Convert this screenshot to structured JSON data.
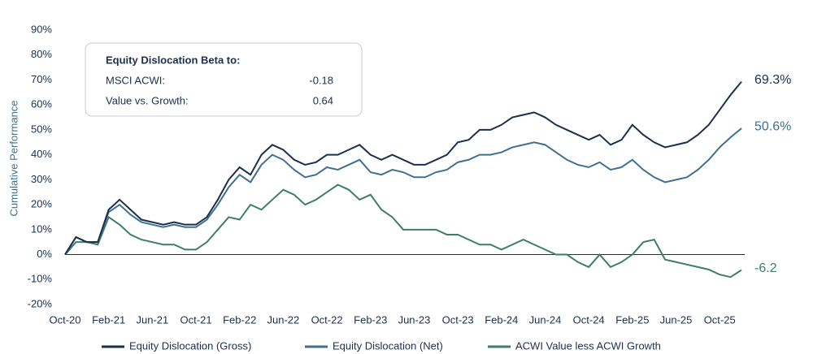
{
  "chart_data": {
    "type": "line",
    "y_label": "Cumulative Performance",
    "categories": [
      "Oct-20",
      null,
      null,
      null,
      "Feb-21",
      null,
      null,
      null,
      "Jun-21",
      null,
      null,
      null,
      "Oct-21",
      null,
      null,
      null,
      "Feb-22",
      null,
      null,
      null,
      "Jun-22",
      null,
      null,
      null,
      "Oct-22",
      null,
      null,
      null,
      "Feb-23",
      null,
      null,
      null,
      "Jun-23",
      null,
      null,
      null,
      "Oct-23",
      null,
      null,
      null,
      "Feb-24",
      null,
      null,
      null,
      "Jun-24",
      null,
      null,
      null,
      "Oct-24",
      null,
      null,
      null,
      "Feb-25",
      null,
      null,
      null,
      "Jun-25",
      null,
      null,
      null,
      "Oct-25",
      null,
      null
    ],
    "series": [
      {
        "name": "Equity Dislocation (Gross)",
        "color": "#1b2f4e",
        "end_label": "69.3%",
        "values": [
          0,
          7,
          5,
          5,
          18,
          22,
          18,
          14,
          13,
          12,
          13,
          12,
          12,
          15,
          22,
          30,
          35,
          32,
          40,
          44,
          42,
          38,
          36,
          37,
          40,
          40,
          42,
          44,
          40,
          38,
          40,
          38,
          36,
          36,
          38,
          40,
          45,
          46,
          50,
          50,
          52,
          55,
          56,
          57,
          55,
          52,
          50,
          48,
          46,
          48,
          44,
          46,
          52,
          48,
          45,
          43,
          44,
          45,
          48,
          52,
          58,
          64,
          69.3
        ]
      },
      {
        "name": "Equity Dislocation (Net)",
        "color": "#3f7090",
        "end_label": "50.6%",
        "values": [
          0,
          7,
          5,
          5,
          17,
          20,
          16,
          13,
          12,
          11,
          12,
          11,
          11,
          14,
          20,
          27,
          32,
          29,
          36,
          40,
          38,
          34,
          31,
          32,
          35,
          34,
          36,
          38,
          33,
          32,
          34,
          33,
          31,
          31,
          33,
          34,
          37,
          38,
          40,
          40,
          41,
          43,
          44,
          45,
          44,
          41,
          38,
          36,
          35,
          37,
          34,
          35,
          38,
          34,
          31,
          29,
          30,
          31,
          34,
          38,
          43,
          47,
          50.6
        ]
      },
      {
        "name": "ACWI Value less ACWI Growth",
        "color": "#3d7d6a",
        "end_label": "-6.2",
        "values": [
          0,
          5,
          5,
          4,
          15,
          12,
          8,
          6,
          5,
          4,
          4,
          2,
          2,
          5,
          10,
          15,
          14,
          20,
          18,
          22,
          26,
          24,
          20,
          22,
          25,
          28,
          26,
          22,
          24,
          18,
          15,
          10,
          10,
          10,
          10,
          8,
          8,
          6,
          4,
          4,
          2,
          4,
          6,
          4,
          2,
          0,
          0,
          -3,
          -5,
          0,
          -5,
          -3,
          0,
          5,
          6,
          -2,
          -3,
          -4,
          -5,
          -6,
          -8,
          -9,
          -6.2
        ]
      }
    ],
    "ylim": [
      -20,
      90
    ],
    "yticks": [
      {
        "value": -20,
        "label": "-20%"
      },
      {
        "value": -10,
        "label": "-10%"
      },
      {
        "value": 0,
        "label": "0%"
      },
      {
        "value": 10,
        "label": "10%"
      },
      {
        "value": 20,
        "label": "20%"
      },
      {
        "value": 30,
        "label": "30%"
      },
      {
        "value": 40,
        "label": "40%"
      },
      {
        "value": 50,
        "label": "50%"
      },
      {
        "value": 60,
        "label": "60%"
      },
      {
        "value": 70,
        "label": "70%"
      },
      {
        "value": 80,
        "label": "80%"
      },
      {
        "value": 90,
        "label": "90%"
      }
    ],
    "zero_line": true,
    "legend": "bottom",
    "inset": {
      "title": "Equity Dislocation Beta to:",
      "rows": [
        {
          "label": "MSCI ACWI:",
          "value": -0.18
        },
        {
          "label": "Value vs. Growth:",
          "value": 0.64
        }
      ]
    }
  }
}
